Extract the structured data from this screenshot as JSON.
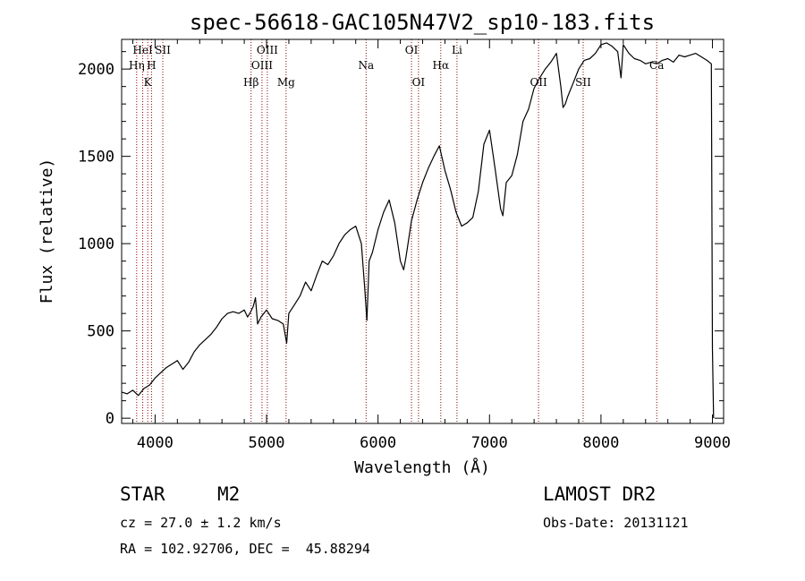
{
  "chart_data": {
    "type": "line",
    "title": "spec-56618-GAC105N47V2_sp10-183.fits",
    "xlabel": "Wavelength (Å)",
    "ylabel": "Flux (relative)",
    "xlim": [
      3700,
      9100
    ],
    "ylim": [
      -30,
      2170
    ],
    "xticks": [
      {
        "value": 4000,
        "label": "4000"
      },
      {
        "value": 5000,
        "label": "5000"
      },
      {
        "value": 6000,
        "label": "6000"
      },
      {
        "value": 7000,
        "label": "7000"
      },
      {
        "value": 8000,
        "label": "8000"
      },
      {
        "value": 9000,
        "label": "9000"
      }
    ],
    "yticks": [
      {
        "value": 0,
        "label": "0"
      },
      {
        "value": 500,
        "label": "500"
      },
      {
        "value": 1000,
        "label": "1000"
      },
      {
        "value": 1500,
        "label": "1500"
      },
      {
        "value": 2000,
        "label": "2000"
      }
    ],
    "grid": false,
    "line_color": "#000000",
    "marker_color": "#8b0000",
    "spectral_lines": [
      {
        "label": "HeI",
        "wavelength": 3889,
        "row": 0
      },
      {
        "label": "SII",
        "wavelength": 4069,
        "row": 0
      },
      {
        "label": "Hη",
        "wavelength": 3835,
        "row": 1
      },
      {
        "label": "H",
        "wavelength": 3968,
        "row": 1
      },
      {
        "label": "K",
        "wavelength": 3934,
        "row": 2
      },
      {
        "label": "OIII",
        "wavelength": 5007,
        "row": 0
      },
      {
        "label": "OIII",
        "wavelength": 4959,
        "row": 1
      },
      {
        "label": "Hβ",
        "wavelength": 4861,
        "row": 2
      },
      {
        "label": "Mg",
        "wavelength": 5175,
        "row": 2
      },
      {
        "label": "Na",
        "wavelength": 5893,
        "row": 1
      },
      {
        "label": "OI",
        "wavelength": 6300,
        "row": 0
      },
      {
        "label": "OI",
        "wavelength": 6363,
        "row": 2
      },
      {
        "label": "Hα",
        "wavelength": 6563,
        "row": 1
      },
      {
        "label": "Li",
        "wavelength": 6708,
        "row": 0
      },
      {
        "label": "OII",
        "wavelength": 7440,
        "row": 2
      },
      {
        "label": "SII",
        "wavelength": 7840,
        "row": 2
      },
      {
        "label": "Ca",
        "wavelength": 8500,
        "row": 1
      }
    ],
    "series": [
      {
        "x": [
          3700,
          3750,
          3800,
          3850,
          3900,
          3950,
          4000,
          4050,
          4100,
          4150,
          4200,
          4250,
          4300,
          4350,
          4400,
          4450,
          4500,
          4550,
          4600,
          4650,
          4700,
          4750,
          4800,
          4830,
          4850,
          4880,
          4900,
          4920,
          4950,
          5000,
          5050,
          5100,
          5150,
          5180,
          5200,
          5250,
          5300,
          5350,
          5400,
          5450,
          5500,
          5550,
          5600,
          5650,
          5700,
          5750,
          5800,
          5850,
          5880,
          5900,
          5920,
          5950,
          6000,
          6050,
          6100,
          6150,
          6200,
          6230,
          6250,
          6300,
          6350,
          6400,
          6450,
          6500,
          6550,
          6600,
          6650,
          6700,
          6750,
          6800,
          6850,
          6900,
          6950,
          7000,
          7050,
          7100,
          7120,
          7150,
          7200,
          7250,
          7300,
          7350,
          7400,
          7450,
          7500,
          7550,
          7600,
          7640,
          7660,
          7680,
          7700,
          7750,
          7800,
          7850,
          7900,
          7950,
          8000,
          8050,
          8100,
          8150,
          8180,
          8200,
          8250,
          8300,
          8350,
          8400,
          8450,
          8500,
          8550,
          8600,
          8650,
          8700,
          8750,
          8800,
          8850,
          8900,
          8950,
          8990,
          9000,
          9010
        ],
        "y": [
          150,
          140,
          160,
          130,
          170,
          190,
          230,
          260,
          290,
          310,
          330,
          280,
          320,
          380,
          420,
          450,
          480,
          520,
          570,
          600,
          610,
          600,
          620,
          580,
          600,
          640,
          690,
          540,
          580,
          620,
          570,
          560,
          540,
          430,
          600,
          650,
          700,
          780,
          730,
          820,
          900,
          880,
          930,
          1000,
          1050,
          1080,
          1100,
          1000,
          750,
          560,
          900,
          950,
          1080,
          1180,
          1250,
          1120,
          900,
          850,
          920,
          1130,
          1250,
          1350,
          1430,
          1500,
          1560,
          1420,
          1310,
          1180,
          1100,
          1120,
          1150,
          1300,
          1570,
          1650,
          1430,
          1200,
          1160,
          1350,
          1390,
          1510,
          1700,
          1770,
          1890,
          1950,
          2000,
          2040,
          2090,
          1900,
          1780,
          1800,
          1840,
          1920,
          2000,
          2050,
          2060,
          2090,
          2140,
          2150,
          2130,
          2100,
          1950,
          2140,
          2090,
          2060,
          2050,
          2030,
          2040,
          2030,
          2050,
          2060,
          2040,
          2080,
          2070,
          2080,
          2090,
          2070,
          2050,
          2030,
          400,
          0
        ]
      }
    ]
  },
  "info": {
    "object_type": "STAR",
    "subclass": "M2",
    "survey": "LAMOST DR2",
    "cz": "cz = 27.0 ± 1.2 km/s",
    "obs_date": "Obs-Date: 20131121",
    "coords": "RA = 102.92706, DEC =  45.88294"
  }
}
